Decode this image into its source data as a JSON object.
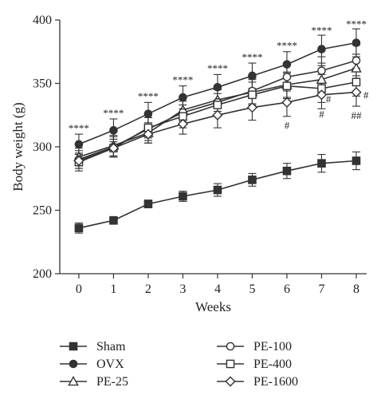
{
  "chart_data": {
    "type": "line",
    "xlabel": "Weeks",
    "ylabel": "Body weight (g)",
    "x": [
      0,
      1,
      2,
      3,
      4,
      5,
      6,
      7,
      8
    ],
    "xlim": [
      -0.55,
      8.3
    ],
    "ylim": [
      200,
      400
    ],
    "yticks": [
      200,
      250,
      300,
      350,
      400
    ],
    "grid": false,
    "legend_position": "bottom",
    "series": [
      {
        "name": "Sham",
        "marker": "square-filled",
        "values": [
          236,
          242,
          255,
          261,
          266,
          274,
          281,
          287,
          289
        ],
        "errors": [
          4,
          3,
          3,
          4,
          5,
          5,
          6,
          7,
          7
        ]
      },
      {
        "name": "OVX",
        "marker": "circle-filled",
        "values": [
          302,
          313,
          326,
          339,
          347,
          356,
          365,
          377,
          382
        ],
        "errors": [
          8,
          9,
          9,
          9,
          10,
          10,
          10,
          11,
          11
        ]
      },
      {
        "name": "PE-25",
        "marker": "triangle-open",
        "values": [
          292,
          301,
          311,
          329,
          337,
          343,
          349,
          353,
          362
        ],
        "errors": [
          7,
          8,
          8,
          9,
          9,
          10,
          10,
          11,
          11
        ]
      },
      {
        "name": "PE-100",
        "marker": "circle-open",
        "values": [
          290,
          300,
          314,
          327,
          335,
          344,
          355,
          360,
          368
        ],
        "errors": [
          7,
          8,
          9,
          9,
          10,
          10,
          11,
          11,
          12
        ]
      },
      {
        "name": "PE-400",
        "marker": "square-open",
        "values": [
          288,
          299,
          315,
          324,
          333,
          341,
          348,
          346,
          351
        ],
        "errors": [
          7,
          7,
          8,
          9,
          9,
          10,
          10,
          11,
          11
        ]
      },
      {
        "name": "PE-1600",
        "marker": "diamond-open",
        "values": [
          289,
          299,
          310,
          318,
          325,
          331,
          335,
          341,
          343
        ],
        "errors": [
          6,
          7,
          7,
          8,
          10,
          10,
          11,
          11,
          11
        ]
      }
    ],
    "annotations": [
      {
        "x": 0,
        "y": 312,
        "text": "****"
      },
      {
        "x": 1,
        "y": 324,
        "text": "****"
      },
      {
        "x": 2,
        "y": 337,
        "text": "****"
      },
      {
        "x": 3,
        "y": 350,
        "text": "****"
      },
      {
        "x": 4,
        "y": 359,
        "text": "****"
      },
      {
        "x": 5,
        "y": 368,
        "text": "****"
      },
      {
        "x": 6,
        "y": 377,
        "text": "****"
      },
      {
        "x": 7,
        "y": 389,
        "text": "****"
      },
      {
        "x": 8,
        "y": 394,
        "text": "****"
      },
      {
        "x": 6,
        "y": 314,
        "text": "#"
      },
      {
        "x": 7,
        "y": 323,
        "text": "#"
      },
      {
        "x": 7.2,
        "y": 335,
        "text": "#"
      },
      {
        "x": 8,
        "y": 322,
        "text": "##"
      },
      {
        "x": 8.28,
        "y": 338,
        "text": "#"
      }
    ]
  }
}
